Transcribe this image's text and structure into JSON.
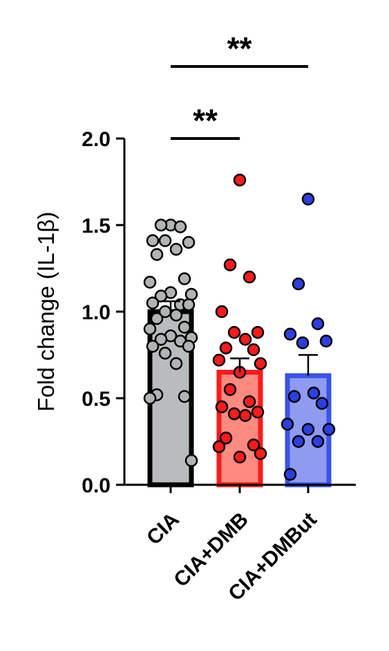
{
  "chart_data": {
    "type": "bar",
    "ylabel": "Fold change (IL-1β)",
    "xlabel": "",
    "ylim": [
      0,
      2.0
    ],
    "yticks": [
      "0.0",
      "0.5",
      "1.0",
      "1.5",
      "2.0"
    ],
    "ytick_values": [
      0,
      0.5,
      1.0,
      1.5,
      2.0
    ],
    "categories": [
      "CIA",
      "CIA+DMB",
      "CIA+DMBut"
    ],
    "series": [
      {
        "values": [
          1.0,
          0.65,
          0.63
        ],
        "sem": [
          0.06,
          0.08,
          0.12
        ],
        "fill": [
          "#b8bcbd",
          "#ff8a80",
          "#8e9bf0"
        ],
        "edge": [
          "#000000",
          "#ff1a1a",
          "#3a54e6"
        ],
        "point_color": [
          "#b0b4b5",
          "#ff1a1a",
          "#2c3fe0"
        ]
      }
    ],
    "points": [
      [
        1.5,
        1.5,
        1.49,
        1.41,
        1.4,
        1.41,
        1.36,
        1.33,
        1.19,
        1.17,
        1.1,
        1.11,
        1.09,
        1.04,
        1.05,
        1.04,
        1.0,
        0.98,
        0.96,
        0.91,
        0.9,
        0.85,
        0.86,
        0.84,
        0.83,
        0.8,
        0.8,
        0.76,
        0.7,
        0.52,
        0.51,
        0.5,
        0.14
      ],
      [
        1.76,
        1.27,
        1.2,
        1.0,
        0.88,
        0.88,
        0.84,
        0.79,
        0.78,
        0.72,
        0.7,
        0.65,
        0.55,
        0.48,
        0.45,
        0.42,
        0.41,
        0.4,
        0.27,
        0.23,
        0.22,
        0.18,
        0.16
      ],
      [
        1.65,
        1.16,
        0.93,
        0.87,
        0.83,
        0.82,
        0.53,
        0.51,
        0.47,
        0.35,
        0.32,
        0.32,
        0.25,
        0.25,
        0.06
      ]
    ],
    "comparisons": [
      {
        "from": "CIA",
        "to": "CIA+DMB",
        "label": "**"
      },
      {
        "from": "CIA",
        "to": "CIA+DMBut",
        "label": "**"
      }
    ]
  }
}
